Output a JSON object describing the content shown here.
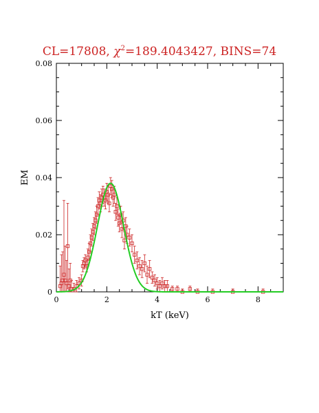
{
  "chart_data": {
    "type": "scatter",
    "title": {
      "prefix": "CL=17808,  ",
      "chi_symbol": "χ",
      "chi_sup": "2",
      "suffix": "=189.4043427, BINS=74"
    },
    "xlabel": "kT (keV)",
    "ylabel": "EM",
    "xlim": [
      0,
      9
    ],
    "ylim": [
      0,
      0.08
    ],
    "xticks_major": [
      0,
      2,
      4,
      6,
      8
    ],
    "yticks_major": [
      0,
      0.02,
      0.04,
      0.06,
      0.08
    ],
    "yticks_major_labels": [
      "0",
      "0.02",
      "0.04",
      "0.06",
      "0.08"
    ],
    "grid": false,
    "legend": "none",
    "colors": {
      "data": "#cc2222",
      "model": "#22cc22",
      "title": "#cc2222"
    },
    "series": [
      {
        "kind": "data-with-errorbars",
        "points": [
          [
            0.15,
            0.002,
            0.007
          ],
          [
            0.2,
            0.003,
            0.01
          ],
          [
            0.25,
            0.004,
            0.01
          ],
          [
            0.3,
            0.006,
            0.026
          ],
          [
            0.35,
            0.004,
            0.012
          ],
          [
            0.4,
            0.003,
            0.008
          ],
          [
            0.45,
            0.016,
            0.015
          ],
          [
            0.5,
            0.002,
            0.006
          ],
          [
            0.55,
            0.004,
            0.006
          ],
          [
            0.6,
            0.001,
            0.003
          ],
          [
            0.7,
            0.001,
            0.002
          ],
          [
            0.8,
            0.002,
            0.002
          ],
          [
            0.9,
            0.003,
            0.002
          ],
          [
            1.0,
            0.004,
            0.002
          ],
          [
            1.05,
            0.009,
            0.002
          ],
          [
            1.1,
            0.01,
            0.002
          ],
          [
            1.15,
            0.011,
            0.002
          ],
          [
            1.2,
            0.009,
            0.002
          ],
          [
            1.25,
            0.012,
            0.003
          ],
          [
            1.3,
            0.014,
            0.003
          ],
          [
            1.35,
            0.017,
            0.003
          ],
          [
            1.4,
            0.019,
            0.003
          ],
          [
            1.45,
            0.021,
            0.003
          ],
          [
            1.5,
            0.023,
            0.003
          ],
          [
            1.55,
            0.025,
            0.003
          ],
          [
            1.6,
            0.027,
            0.003
          ],
          [
            1.65,
            0.03,
            0.003
          ],
          [
            1.7,
            0.032,
            0.003
          ],
          [
            1.75,
            0.031,
            0.003
          ],
          [
            1.8,
            0.033,
            0.003
          ],
          [
            1.85,
            0.034,
            0.003
          ],
          [
            1.9,
            0.033,
            0.003
          ],
          [
            1.95,
            0.032,
            0.003
          ],
          [
            2.0,
            0.035,
            0.003
          ],
          [
            2.05,
            0.034,
            0.003
          ],
          [
            2.1,
            0.031,
            0.003
          ],
          [
            2.15,
            0.037,
            0.003
          ],
          [
            2.2,
            0.036,
            0.003
          ],
          [
            2.25,
            0.033,
            0.003
          ],
          [
            2.3,
            0.034,
            0.003
          ],
          [
            2.35,
            0.028,
            0.003
          ],
          [
            2.4,
            0.03,
            0.003
          ],
          [
            2.45,
            0.026,
            0.003
          ],
          [
            2.5,
            0.024,
            0.003
          ],
          [
            2.55,
            0.027,
            0.003
          ],
          [
            2.6,
            0.022,
            0.003
          ],
          [
            2.65,
            0.025,
            0.003
          ],
          [
            2.7,
            0.018,
            0.003
          ],
          [
            2.75,
            0.023,
            0.003
          ],
          [
            2.8,
            0.02,
            0.003
          ],
          [
            2.9,
            0.019,
            0.003
          ],
          [
            3.0,
            0.017,
            0.003
          ],
          [
            3.1,
            0.013,
            0.003
          ],
          [
            3.2,
            0.011,
            0.003
          ],
          [
            3.3,
            0.009,
            0.003
          ],
          [
            3.4,
            0.008,
            0.003
          ],
          [
            3.5,
            0.01,
            0.003
          ],
          [
            3.6,
            0.006,
            0.003
          ],
          [
            3.7,
            0.008,
            0.003
          ],
          [
            3.8,
            0.005,
            0.002
          ],
          [
            3.9,
            0.004,
            0.002
          ],
          [
            4.0,
            0.003,
            0.002
          ],
          [
            4.1,
            0.002,
            0.002
          ],
          [
            4.2,
            0.003,
            0.002
          ],
          [
            4.3,
            0.002,
            0.002
          ],
          [
            4.4,
            0.002,
            0.002
          ],
          [
            4.6,
            0.001,
            0.001
          ],
          [
            4.8,
            0.001,
            0.001
          ],
          [
            5.0,
            0.0,
            0.001
          ],
          [
            5.3,
            0.001,
            0.001
          ],
          [
            5.6,
            0.0,
            0.001
          ],
          [
            6.2,
            0.0,
            0.001
          ],
          [
            7.0,
            0.0,
            0.001
          ],
          [
            8.2,
            0.0,
            0.001
          ]
        ]
      },
      {
        "kind": "model-curve",
        "peak_kt": 2.15,
        "peak_em": 0.038,
        "sigma_kt": 0.52
      }
    ]
  }
}
